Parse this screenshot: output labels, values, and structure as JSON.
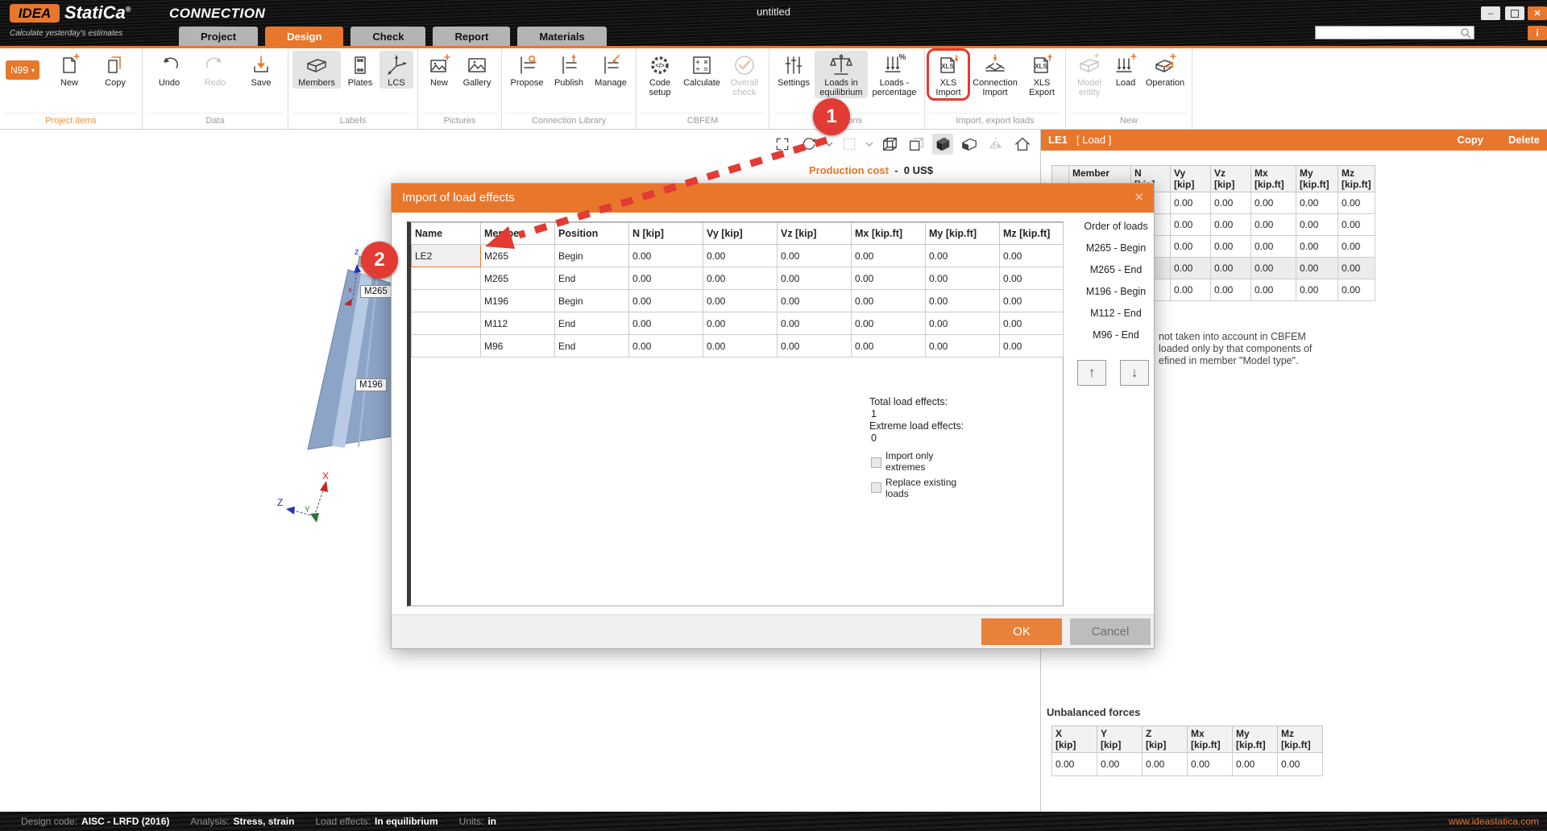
{
  "colors": {
    "accent_orange": "#e8772c",
    "highlight_red": "#e23b33",
    "tab_inactive_gray": "#b4b4b4",
    "model_blue": "#8ca4c8",
    "dialog_title_orange": "#e8772c"
  },
  "titlebar": {
    "logo_idea": "IDEA",
    "logo_statica": "StatiCa",
    "logo_reg": "®",
    "product": "CONNECTION",
    "tagline": "Calculate yesterday's estimates",
    "window_title": "untitled",
    "minimize_glyph": "–",
    "close_glyph": "✕",
    "info_glyph": "i"
  },
  "tabs": [
    {
      "label": "Project"
    },
    {
      "label": "Design"
    },
    {
      "label": "Check"
    },
    {
      "label": "Report"
    },
    {
      "label": "Materials"
    }
  ],
  "ribbon": {
    "project_badge": {
      "label": "N99",
      "caret": "▾"
    },
    "groups": [
      {
        "label": "Project items",
        "buttons": [
          {
            "label": "New"
          },
          {
            "label": "Copy"
          }
        ]
      },
      {
        "label": "Data",
        "buttons": [
          {
            "label": "Undo"
          },
          {
            "label": "Redo"
          },
          {
            "label": "Save"
          }
        ]
      },
      {
        "label": "Labels",
        "buttons": [
          {
            "label": "Members"
          },
          {
            "label": "Plates"
          },
          {
            "label": "LCS"
          }
        ]
      },
      {
        "label": "Pictures",
        "buttons": [
          {
            "label": "New"
          },
          {
            "label": "Gallery"
          }
        ]
      },
      {
        "label": "Connection Library",
        "buttons": [
          {
            "label": "Propose"
          },
          {
            "label": "Publish"
          },
          {
            "label": "Manage"
          }
        ]
      },
      {
        "label": "CBFEM",
        "buttons": [
          {
            "label": "Code setup"
          },
          {
            "label": "Calculate"
          },
          {
            "label": "Overall check"
          }
        ]
      },
      {
        "label": "Options",
        "buttons": [
          {
            "label": "Settings"
          },
          {
            "label": "Loads in equilibrium"
          },
          {
            "label": "Loads - percentage"
          }
        ]
      },
      {
        "label": "Import, export loads",
        "buttons": [
          {
            "label": "XLS Import"
          },
          {
            "label": "Connection Import"
          },
          {
            "label": "XLS Export"
          }
        ]
      },
      {
        "label": "New",
        "buttons": [
          {
            "label": "Model entity"
          },
          {
            "label": "Load"
          },
          {
            "label": "Operation"
          }
        ]
      }
    ]
  },
  "viewport": {
    "toolbar_icons": [
      "expand",
      "rotate",
      "select",
      "cube-wireframe",
      "cube-hidden-line",
      "cube-solid",
      "cube-section",
      "mirror",
      "home"
    ],
    "production_cost_label": "Production cost",
    "production_cost_sep": "-",
    "production_cost_value": "0 US$",
    "member_labels": [
      "M265",
      "M196"
    ],
    "triad": {
      "x": "X",
      "y": "Y",
      "z": "Z"
    },
    "mini_axis": {
      "z": "z",
      "x": "x"
    }
  },
  "callouts": {
    "step1": "1",
    "step2": "2"
  },
  "dialog": {
    "title": "Import of load effects",
    "close_glyph": "✕",
    "table": {
      "headers": [
        "Name",
        "Member",
        "Position",
        "N [kip]",
        "Vy [kip]",
        "Vz [kip]",
        "Mx [kip.ft]",
        "My [kip.ft]",
        "Mz [kip.ft]"
      ],
      "rows": [
        [
          "LE2",
          "M265",
          "Begin",
          "0.00",
          "0.00",
          "0.00",
          "0.00",
          "0.00",
          "0.00"
        ],
        [
          "",
          "M265",
          "End",
          "0.00",
          "0.00",
          "0.00",
          "0.00",
          "0.00",
          "0.00"
        ],
        [
          "",
          "M196",
          "Begin",
          "0.00",
          "0.00",
          "0.00",
          "0.00",
          "0.00",
          "0.00"
        ],
        [
          "",
          "M112",
          "End",
          "0.00",
          "0.00",
          "0.00",
          "0.00",
          "0.00",
          "0.00"
        ],
        [
          "",
          "M96",
          "End",
          "0.00",
          "0.00",
          "0.00",
          "0.00",
          "0.00",
          "0.00"
        ]
      ]
    },
    "order_of_loads": {
      "title": "Order of loads",
      "items": [
        "M265 - Begin",
        "M265 - End",
        "M196 - Begin",
        "M112 - End",
        "M96 - End"
      ]
    },
    "up_glyph": "↑",
    "down_glyph": "↓",
    "totals": {
      "total_label": "Total load effects:",
      "total_value": "1",
      "extreme_label": "Extreme load effects:",
      "extreme_value": "0"
    },
    "checkbox_import_extremes": "Import only extremes",
    "checkbox_replace_loads": "Replace existing loads",
    "ok_label": "OK",
    "cancel_label": "Cancel"
  },
  "load_panel": {
    "title": "LE1",
    "subtitle": "[ Load ]",
    "copy_label": "Copy",
    "delete_label": "Delete",
    "table": {
      "headers": [
        "",
        "Member",
        "N\n[kip]",
        "Vy\n[kip]",
        "Vz\n[kip]",
        "Mx\n[kip.ft]",
        "My\n[kip.ft]",
        "Mz\n[kip.ft]"
      ],
      "rows": [
        [
          "",
          "",
          "",
          "0.00",
          "0.00",
          "0.00",
          "0.00",
          "0.00"
        ],
        [
          "",
          "",
          "",
          "0.00",
          "0.00",
          "0.00",
          "0.00",
          "0.00"
        ],
        [
          "",
          "",
          "",
          "0.00",
          "0.00",
          "0.00",
          "0.00",
          "0.00"
        ],
        [
          "",
          "",
          "",
          "0.00",
          "0.00",
          "0.00",
          "0.00",
          "0.00"
        ],
        [
          "",
          "",
          "",
          "0.00",
          "0.00",
          "0.00",
          "0.00",
          "0.00"
        ]
      ]
    },
    "note_lines": [
      "not taken into account in CBFEM",
      "loaded only by that components of",
      "efined in member \"Model type\"."
    ],
    "unbalanced": {
      "title": "Unbalanced forces",
      "headers": [
        "X\n[kip]",
        "Y\n[kip]",
        "Z\n[kip]",
        "Mx\n[kip.ft]",
        "My\n[kip.ft]",
        "Mz\n[kip.ft]"
      ],
      "rows": [
        [
          "0.00",
          "0.00",
          "0.00",
          "0.00",
          "0.00",
          "0.00"
        ]
      ]
    }
  },
  "statusbar": {
    "items": [
      {
        "label": "Design code:",
        "value": "AISC - LRFD (2016)"
      },
      {
        "label": "Analysis:",
        "value": "Stress, strain"
      },
      {
        "label": "Load effects:",
        "value": "In equilibrium"
      },
      {
        "label": "Units:",
        "value": "in"
      }
    ],
    "website": "www.ideastatica.com"
  }
}
